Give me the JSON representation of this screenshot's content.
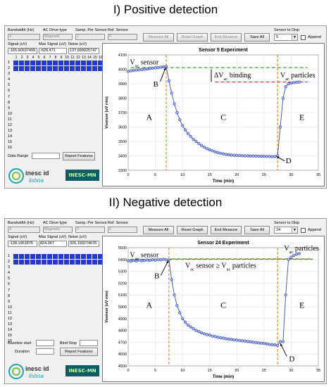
{
  "panels": [
    {
      "heading": "I) Positive detection",
      "labels": {
        "bandwidth": "Bandwidth (Hz)",
        "ac_drive": "AC Drive type",
        "samp": "Samp. Per Sensor",
        "ref": "Ref. Sensor",
        "signal": "Signal (uV)",
        "max_signal": "Max Signal (uV)",
        "noise": "Noise (uV)",
        "sensor_to_disp": "Sensor to Disp",
        "append": "Append",
        "data_range": "Data Range"
      },
      "values": {
        "bandwidth": "4",
        "ac_drive": "Magnetic",
        "samp": "2",
        "ref": "0",
        "signal": "-165.90937499",
        "max_signal": "-628.471",
        "noise": "137.699925747",
        "sensor_to_disp": "5"
      },
      "buttons": [
        "Measure All",
        "Reset Graph",
        "End Measure",
        "Save All"
      ],
      "report_button": "Report Features",
      "sensor_numbers": [
        "1",
        "2",
        "3",
        "4",
        "5",
        "6",
        "7",
        "8",
        "9",
        "10",
        "11",
        "12",
        "13",
        "14",
        "15",
        "16"
      ],
      "sensor_list": [
        "1",
        "2",
        "3",
        "4",
        "5",
        "6",
        "7",
        "8",
        "9",
        "10",
        "11",
        "12",
        "13",
        "14",
        "15",
        "16"
      ],
      "logo_text": "inesc id",
      "logo_sub": "lisboa",
      "inesc_mn": "INESC-MN",
      "chart": {
        "title": "Sensor 5 Experiment",
        "xlabel": "Time (min)",
        "ylabel": "Vsensor (uV rms)",
        "xticks": [
          "0",
          "5",
          "10",
          "15",
          "20",
          "25",
          "30",
          "35"
        ],
        "yticks": [
          "3300",
          "3400",
          "3500",
          "3600",
          "3700",
          "3800",
          "3900",
          "4000",
          "4100"
        ],
        "annotations": {
          "vac_sensor": "V",
          "vac_sensor_sub": "ac",
          "vac_sensor_rest": " sensor",
          "delta": "ΔV",
          "delta_sub": "ac",
          "delta_rest": " binding",
          "vac_particles": "V",
          "vac_particles_sub": "ac",
          "vac_particles_rest": " particles",
          "A": "A",
          "B": "B",
          "C": "C",
          "D": "D",
          "E": "E"
        }
      }
    },
    {
      "heading": "II) Negative detection",
      "labels": {
        "bandwidth": "Bandwidth (Hz)",
        "ac_drive": "AC Drive type",
        "samp": "Samp. Per Sensor",
        "ref": "Ref. Sensor",
        "signal": "Signal (uV)",
        "max_signal": "Max Signal (uV)",
        "noise": "Noise (uV)",
        "sensor_to_disp": "Sensor to Disp",
        "append": "Append",
        "baseline": "Baseline start",
        "bind_stop": "Bind Stop",
        "duration": "Duration"
      },
      "values": {
        "bandwidth": "4",
        "ac_drive": "Magnetic",
        "samp": "2",
        "ref": "0",
        "signal": "-128.1951875",
        "max_signal": "824.067",
        "noise": "326.199274678",
        "sensor_to_disp": "24"
      },
      "buttons": [
        "Measure All",
        "Reset Graph",
        "End Measure",
        "Save All"
      ],
      "report_button": "Report Features",
      "sensor_list": [
        "1",
        "2",
        "3",
        "4",
        "5",
        "6",
        "7",
        "8",
        "9",
        "10",
        "11",
        "12",
        "13",
        "14",
        "15",
        "16"
      ],
      "logo_text": "inesc id",
      "logo_sub": "lisboa",
      "inesc_mn": "INESC-MN",
      "chart": {
        "title": "Sensor 24 Experiment",
        "xlabel": "Time (min)",
        "ylabel": "Vsensor (uV rms)",
        "xticks": [
          "0",
          "5",
          "10",
          "15",
          "20",
          "25",
          "30",
          "35"
        ],
        "yticks": [
          "4500",
          "4600",
          "4700",
          "4800",
          "4900",
          "5000",
          "5100",
          "5200",
          "5300",
          "5400",
          "5500"
        ],
        "annotations": {
          "vac_sensor": "V",
          "vac_sensor_sub": "ac",
          "vac_sensor_rest": " sensor",
          "cmp": "V",
          "cmp_sub": "ac",
          "cmp_mid": " sensor ≥ V",
          "cmp_sub2": "ac",
          "cmp_rest": " particles",
          "vac_particles": "V",
          "vac_particles_sub": "ac",
          "vac_particles_rest": " particles",
          "A": "A",
          "B": "B",
          "C": "C",
          "D": "D",
          "E": "E"
        }
      }
    }
  ],
  "chart_data": [
    {
      "type": "scatter",
      "title": "Sensor 5 Experiment",
      "xlabel": "Time (min)",
      "ylabel": "Vsensor (uV rms)",
      "xlim": [
        0,
        35
      ],
      "ylim": [
        3300,
        4100
      ],
      "x": [
        0,
        0.5,
        1,
        1.5,
        2,
        2.5,
        3,
        3.5,
        4,
        4.5,
        5,
        5.5,
        6,
        6.5,
        7,
        7.5,
        8,
        8.5,
        9,
        9.5,
        10,
        10.5,
        11,
        11.5,
        12,
        12.5,
        13,
        13.5,
        14,
        14.5,
        15,
        15.5,
        16,
        16.5,
        17,
        17.5,
        18,
        18.5,
        19,
        19.5,
        20,
        20.5,
        21,
        21.5,
        22,
        22.5,
        23,
        23.5,
        24,
        24.5,
        25,
        25.5,
        26,
        26.5,
        27,
        27.5,
        28,
        28.5,
        29,
        29.5,
        30,
        30.5,
        31,
        31.5
      ],
      "y": [
        3985,
        3990,
        3993,
        3995,
        3996,
        3998,
        4000,
        4002,
        4005,
        4008,
        4010,
        4012,
        4015,
        4018,
        4020,
        3920,
        3835,
        3760,
        3700,
        3650,
        3610,
        3580,
        3555,
        3535,
        3515,
        3500,
        3485,
        3472,
        3460,
        3450,
        3442,
        3435,
        3428,
        3422,
        3418,
        3414,
        3410,
        3408,
        3405,
        3404,
        3403,
        3402,
        3401,
        3400,
        3400,
        3399,
        3399,
        3398,
        3398,
        3397,
        3397,
        3396,
        3396,
        3395,
        3395,
        3400,
        3600,
        3800,
        3880,
        3900,
        3905,
        3908,
        3910,
        3912
      ]
    },
    {
      "type": "scatter",
      "title": "Sensor 24 Experiment",
      "xlabel": "Time (min)",
      "ylabel": "Vsensor (uV rms)",
      "xlim": [
        0,
        35
      ],
      "ylim": [
        4500,
        5500
      ],
      "x": [
        0,
        0.5,
        1,
        1.5,
        2,
        2.5,
        3,
        3.5,
        4,
        4.5,
        5,
        5.5,
        6,
        6.5,
        7,
        7.5,
        8,
        8.5,
        9,
        9.5,
        10,
        10.5,
        11,
        11.5,
        12,
        12.5,
        13,
        13.5,
        14,
        14.5,
        15,
        15.5,
        16,
        16.5,
        17,
        17.5,
        18,
        18.5,
        19,
        19.5,
        20,
        20.5,
        21,
        21.5,
        22,
        22.5,
        23,
        23.5,
        24,
        24.5,
        25,
        25.5,
        26,
        26.5,
        27,
        27.5,
        28,
        28.5,
        29,
        29.5,
        30,
        30.5,
        31,
        31.5
      ],
      "y": [
        5390,
        5385,
        5392,
        5388,
        5395,
        5390,
        5393,
        5396,
        5392,
        5398,
        5395,
        5400,
        5398,
        5402,
        5400,
        5395,
        5230,
        5100,
        5010,
        4950,
        4900,
        4870,
        4845,
        4830,
        4815,
        4800,
        4790,
        4780,
        4772,
        4765,
        4760,
        4752,
        4748,
        4742,
        4738,
        4735,
        4730,
        4727,
        4724,
        4720,
        4718,
        4715,
        4712,
        4710,
        4706,
        4704,
        4700,
        4698,
        4695,
        4692,
        4690,
        4686,
        4682,
        4680,
        4678,
        4674,
        4705,
        4705,
        5100,
        5400,
        5420,
        5435,
        5445,
        5450
      ]
    }
  ]
}
